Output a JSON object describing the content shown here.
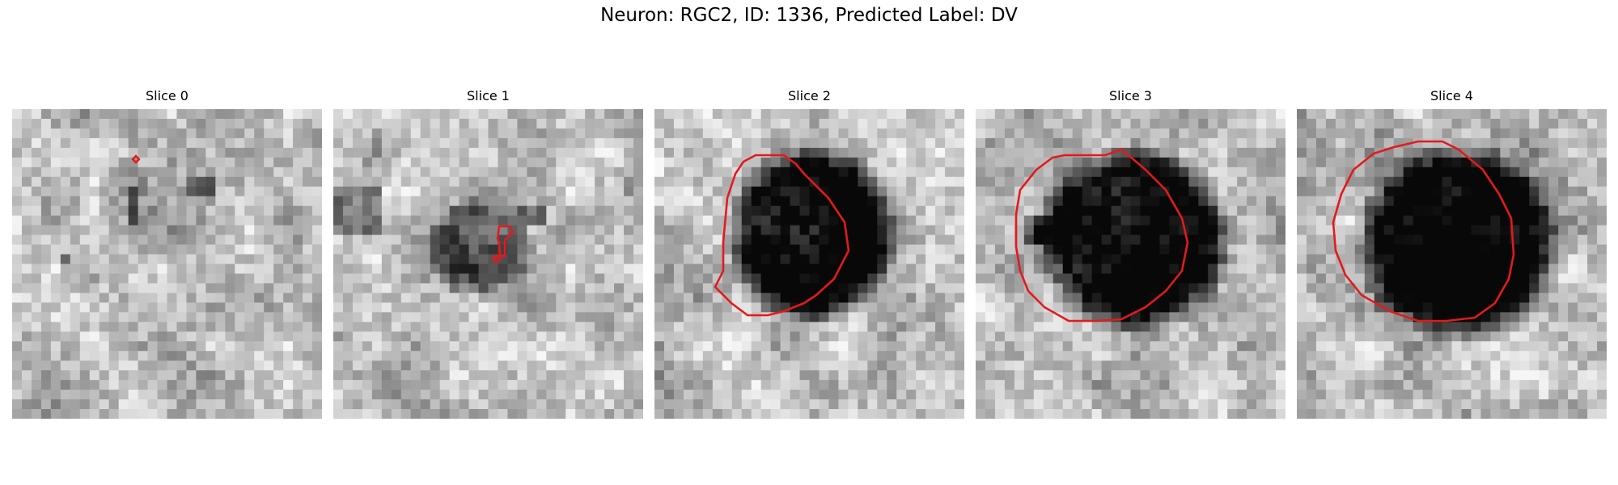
{
  "figure": {
    "title": "Neuron: RGC2, ID: 1336, Predicted Label: DV"
  },
  "colors": {
    "contour": "#e31a1c",
    "background": "#ffffff"
  },
  "panels": [
    {
      "title": "Slice 0",
      "seed": 11,
      "blob": null,
      "contour": [
        [
          149,
          62
        ],
        [
          153,
          58
        ],
        [
          157,
          62
        ],
        [
          153,
          66
        ]
      ],
      "dark_spots": [
        [
          210,
          80,
          40,
          30
        ],
        [
          55,
          180,
          12,
          12
        ],
        [
          140,
          100,
          20,
          40
        ]
      ]
    },
    {
      "title": "Slice 1",
      "seed": 23,
      "blob": [
        180,
        170,
        60,
        55,
        0.35
      ],
      "contour": [
        [
          205,
          145
        ],
        [
          218,
          145
        ],
        [
          222,
          152
        ],
        [
          212,
          162
        ],
        [
          212,
          182
        ],
        [
          206,
          182
        ],
        [
          205,
          165
        ],
        [
          203,
          160
        ]
      ],
      "contour2": [
        [
          197,
          185
        ],
        [
          202,
          181
        ],
        [
          206,
          185
        ],
        [
          202,
          190
        ]
      ],
      "dark_spots": [
        [
          230,
          115,
          30,
          30
        ],
        [
          0,
          100,
          60,
          60
        ]
      ]
    },
    {
      "title": "Slice 2",
      "seed": 37,
      "blob": [
        195,
        155,
        95,
        100,
        0.75
      ],
      "contour": [
        [
          110,
          65
        ],
        [
          125,
          57
        ],
        [
          160,
          57
        ],
        [
          175,
          68
        ],
        [
          185,
          80
        ],
        [
          215,
          110
        ],
        [
          235,
          140
        ],
        [
          240,
          175
        ],
        [
          222,
          210
        ],
        [
          200,
          230
        ],
        [
          185,
          240
        ],
        [
          160,
          250
        ],
        [
          140,
          255
        ],
        [
          115,
          255
        ],
        [
          95,
          240
        ],
        [
          75,
          220
        ],
        [
          85,
          200
        ],
        [
          85,
          165
        ],
        [
          90,
          110
        ],
        [
          100,
          80
        ]
      ],
      "dark_spots": []
    },
    {
      "title": "Slice 3",
      "seed": 41,
      "blob": [
        195,
        160,
        110,
        105,
        0.75
      ],
      "contour": [
        [
          110,
          57
        ],
        [
          160,
          57
        ],
        [
          180,
          50
        ],
        [
          190,
          58
        ],
        [
          210,
          75
        ],
        [
          235,
          100
        ],
        [
          255,
          135
        ],
        [
          262,
          165
        ],
        [
          255,
          200
        ],
        [
          235,
          225
        ],
        [
          210,
          245
        ],
        [
          180,
          260
        ],
        [
          150,
          262
        ],
        [
          115,
          262
        ],
        [
          85,
          245
        ],
        [
          65,
          225
        ],
        [
          55,
          200
        ],
        [
          50,
          170
        ],
        [
          50,
          130
        ],
        [
          55,
          100
        ],
        [
          75,
          75
        ],
        [
          95,
          60
        ]
      ],
      "dark_spots": [
        [
          55,
          130,
          25,
          35
        ]
      ]
    },
    {
      "title": "Slice 4",
      "seed": 53,
      "blob": [
        200,
        165,
        115,
        110,
        0.8
      ],
      "contour": [
        [
          120,
          47
        ],
        [
          150,
          40
        ],
        [
          180,
          40
        ],
        [
          200,
          50
        ],
        [
          230,
          75
        ],
        [
          250,
          105
        ],
        [
          265,
          135
        ],
        [
          268,
          180
        ],
        [
          262,
          210
        ],
        [
          245,
          240
        ],
        [
          220,
          258
        ],
        [
          185,
          262
        ],
        [
          150,
          262
        ],
        [
          115,
          250
        ],
        [
          80,
          230
        ],
        [
          60,
          205
        ],
        [
          48,
          175
        ],
        [
          45,
          140
        ],
        [
          55,
          105
        ],
        [
          70,
          75
        ],
        [
          95,
          55
        ]
      ],
      "dark_spots": []
    }
  ]
}
